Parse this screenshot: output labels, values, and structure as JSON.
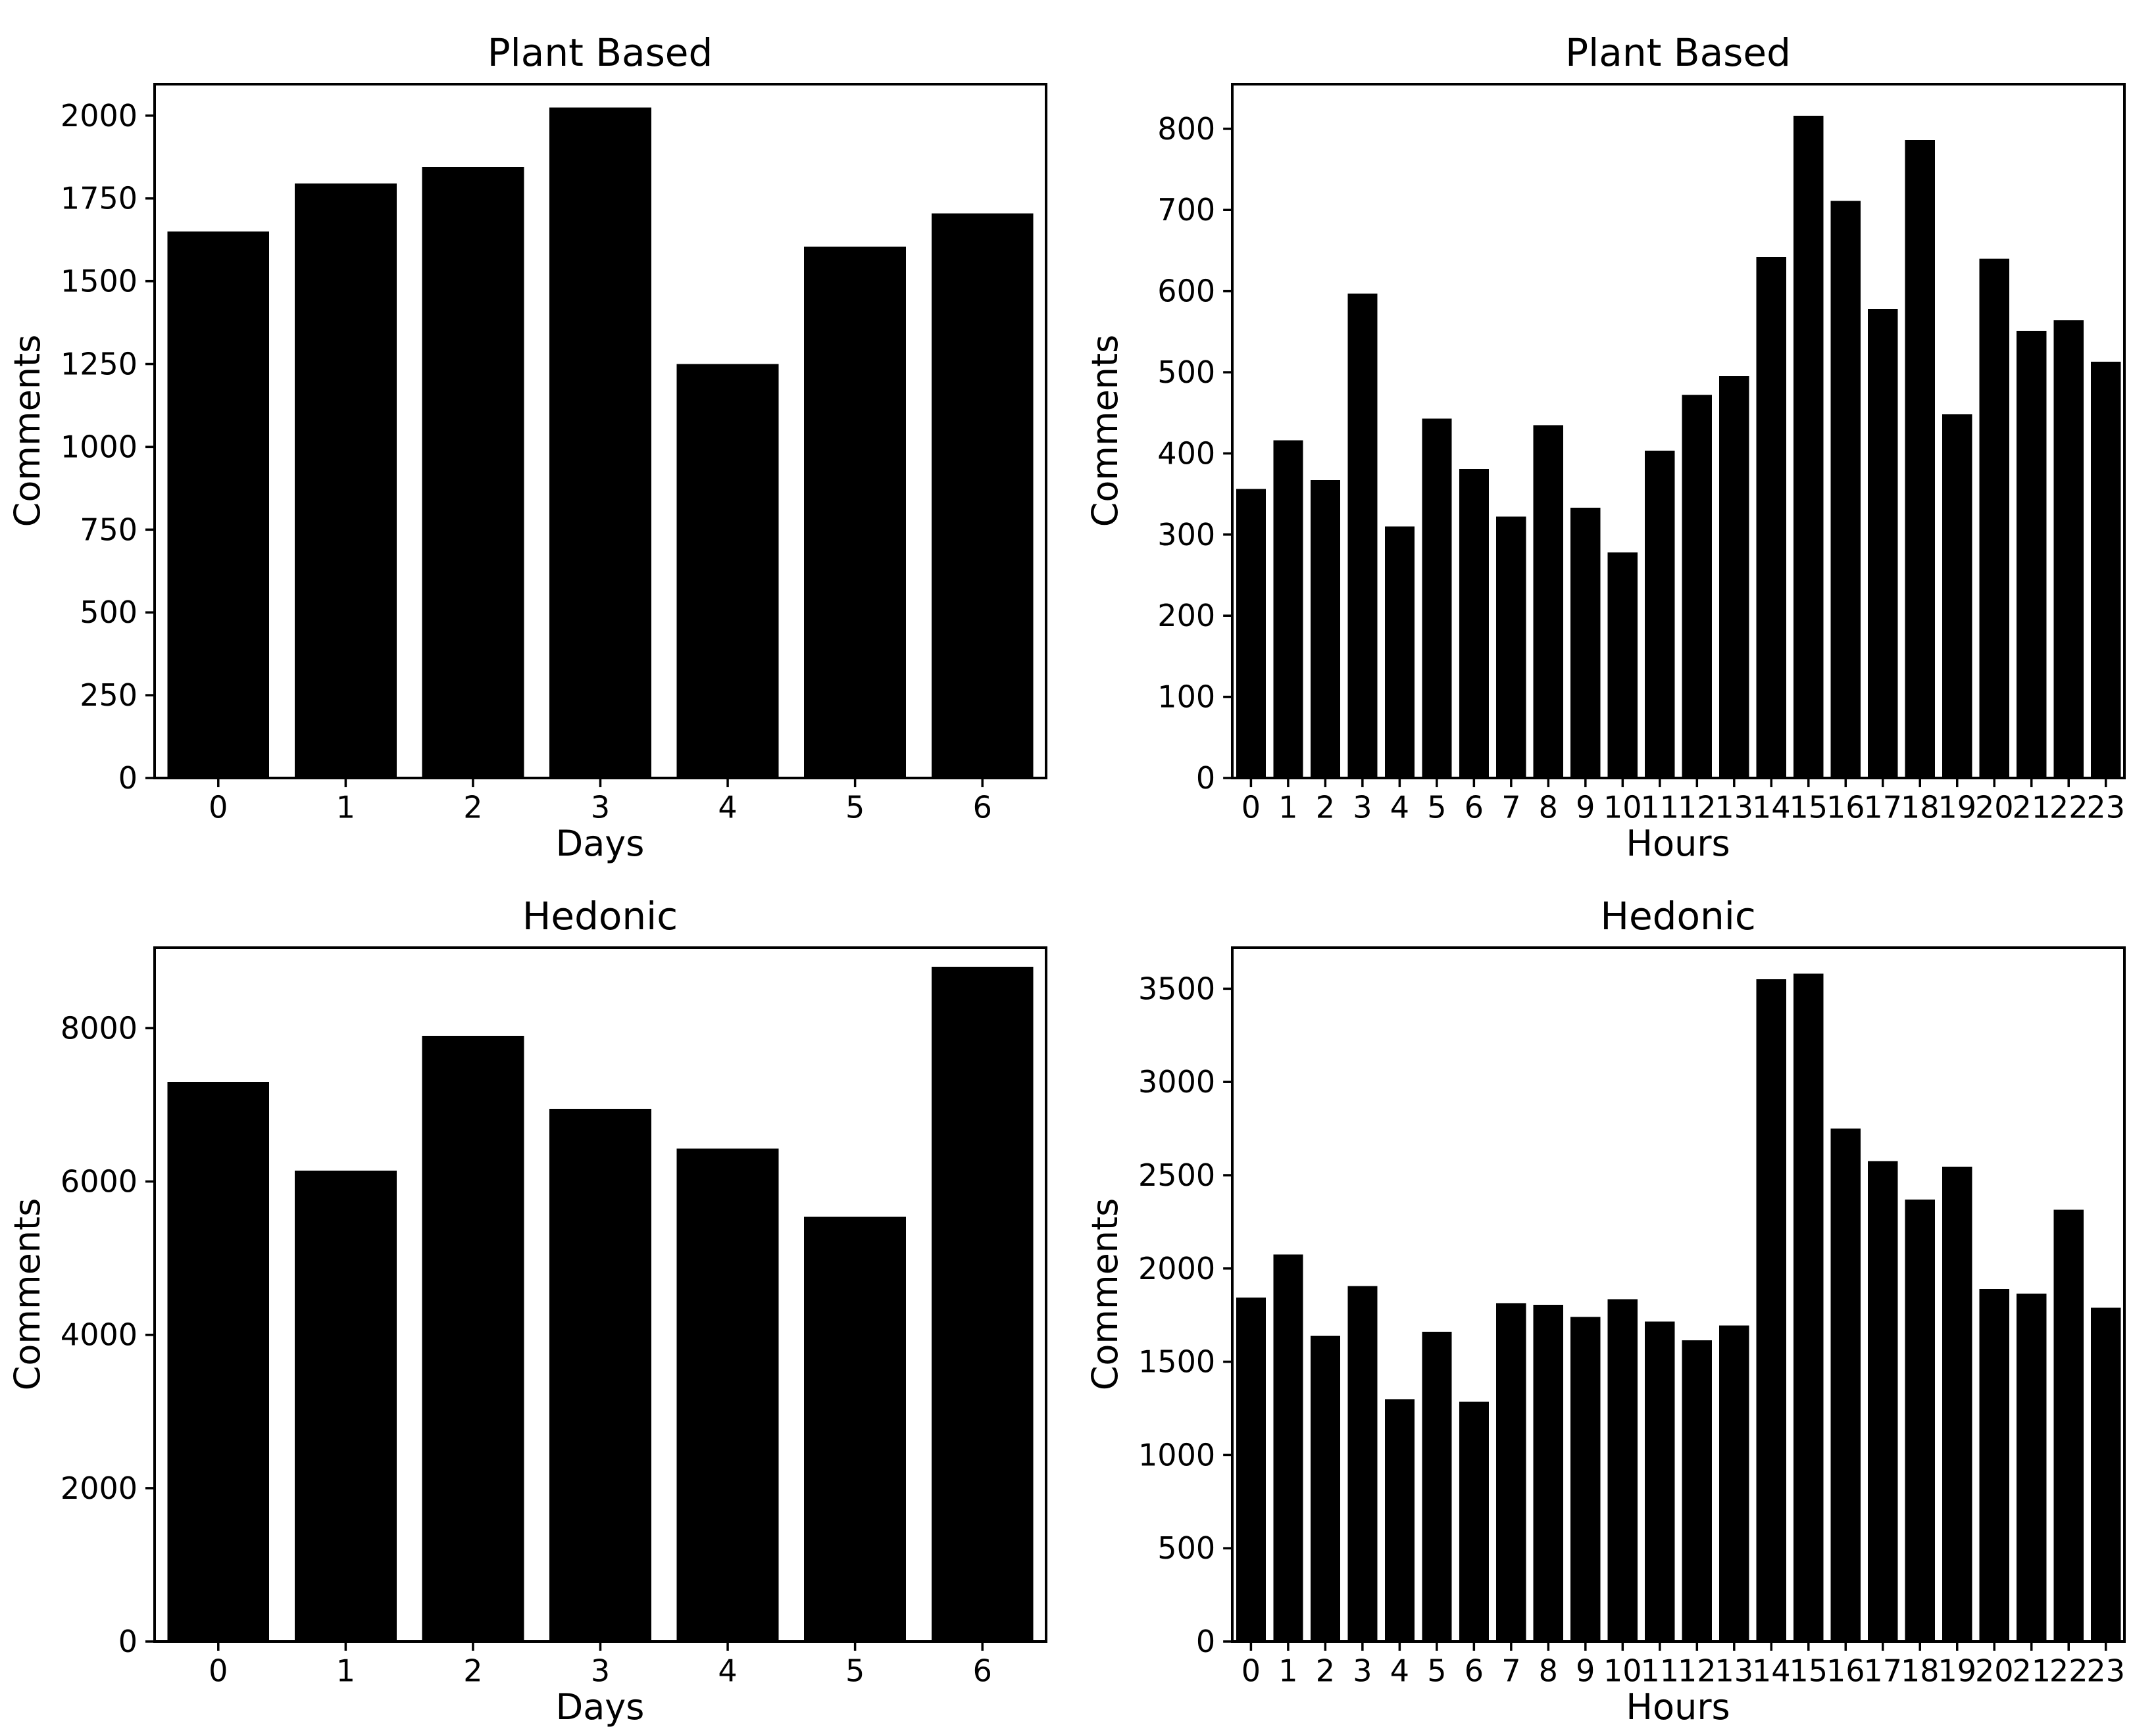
{
  "figure": {
    "background_color": "#ffffff",
    "bar_color": "#000000",
    "axis_color": "#000000",
    "text_color": "#000000"
  },
  "chart_data": [
    {
      "id": "plant-based-by-day",
      "type": "bar",
      "title": "Plant Based",
      "xlabel": "Days",
      "ylabel": "Comments",
      "categories": [
        "0",
        "1",
        "2",
        "3",
        "4",
        "5",
        "6"
      ],
      "values": [
        1650,
        1795,
        1845,
        2025,
        1250,
        1605,
        1705
      ],
      "yticks": [
        0,
        250,
        500,
        750,
        1000,
        1250,
        1500,
        1750,
        2000
      ],
      "ylim": [
        0,
        2095
      ],
      "grid": false,
      "legend": null
    },
    {
      "id": "plant-based-by-hour",
      "type": "bar",
      "title": "Plant Based",
      "xlabel": "Hours",
      "ylabel": "Comments",
      "categories": [
        "0",
        "1",
        "2",
        "3",
        "4",
        "5",
        "6",
        "7",
        "8",
        "9",
        "10",
        "11",
        "12",
        "13",
        "14",
        "15",
        "16",
        "17",
        "18",
        "19",
        "20",
        "21",
        "22",
        "23"
      ],
      "values": [
        356,
        416,
        367,
        597,
        310,
        443,
        381,
        322,
        435,
        333,
        278,
        403,
        472,
        495,
        642,
        816,
        711,
        578,
        786,
        448,
        640,
        551,
        564,
        513
      ],
      "yticks": [
        0,
        100,
        200,
        300,
        400,
        500,
        600,
        700,
        800
      ],
      "ylim": [
        0,
        855
      ],
      "grid": false,
      "legend": null
    },
    {
      "id": "hedonic-by-day",
      "type": "bar",
      "title": "Hedonic",
      "xlabel": "Days",
      "ylabel": "Comments",
      "categories": [
        "0",
        "1",
        "2",
        "3",
        "4",
        "5",
        "6"
      ],
      "values": [
        7300,
        6140,
        7900,
        6950,
        6430,
        5540,
        8800
      ],
      "yticks": [
        0,
        2000,
        4000,
        6000,
        8000
      ],
      "ylim": [
        0,
        9050
      ],
      "grid": false,
      "legend": null
    },
    {
      "id": "hedonic-by-hour",
      "type": "bar",
      "title": "Hedonic",
      "xlabel": "Hours",
      "ylabel": "Comments",
      "categories": [
        "0",
        "1",
        "2",
        "3",
        "4",
        "5",
        "6",
        "7",
        "8",
        "9",
        "10",
        "11",
        "12",
        "13",
        "14",
        "15",
        "16",
        "17",
        "18",
        "19",
        "20",
        "21",
        "22",
        "23"
      ],
      "values": [
        1845,
        2075,
        1640,
        1905,
        1300,
        1660,
        1285,
        1815,
        1805,
        1740,
        1835,
        1715,
        1615,
        1695,
        3550,
        3580,
        2750,
        2575,
        2370,
        2545,
        1890,
        1865,
        2315,
        1790
      ],
      "yticks": [
        0,
        500,
        1000,
        1500,
        2000,
        2500,
        3000,
        3500
      ],
      "ylim": [
        0,
        3720
      ],
      "grid": false,
      "legend": null
    }
  ]
}
